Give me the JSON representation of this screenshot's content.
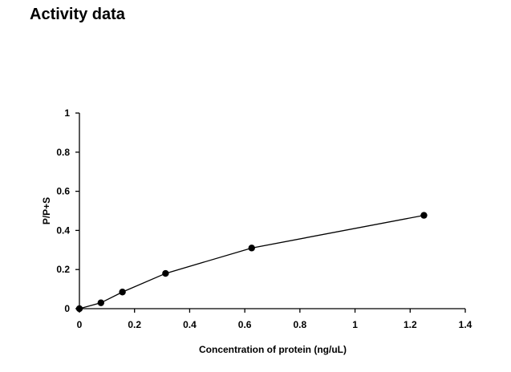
{
  "page": {
    "title": "Activity data"
  },
  "chart_data": {
    "type": "line",
    "title": "",
    "xlabel": "Concentration of protein (ng/uL)",
    "ylabel": "P/P+S",
    "xlim": [
      0,
      1.4
    ],
    "ylim": [
      0,
      1
    ],
    "xticks": [
      0,
      0.2,
      0.4,
      0.6,
      0.8,
      1,
      1.2,
      1.4
    ],
    "xtick_labels": [
      "0",
      "0.2",
      "0.4",
      "0.6",
      "0.8",
      "1",
      "1.2",
      "1.4"
    ],
    "yticks": [
      0,
      0.2,
      0.4,
      0.6,
      0.8,
      1
    ],
    "ytick_labels": [
      "0",
      "0.2",
      "0.4",
      "0.6",
      "0.8",
      "1"
    ],
    "grid": false,
    "legend": "none",
    "series": [
      {
        "x": [
          0,
          0.078,
          0.156,
          0.3125,
          0.625,
          1.25
        ],
        "y": [
          0.0,
          0.03,
          0.085,
          0.18,
          0.31,
          0.477
        ],
        "color": "#000000",
        "marker": "circle"
      }
    ]
  }
}
